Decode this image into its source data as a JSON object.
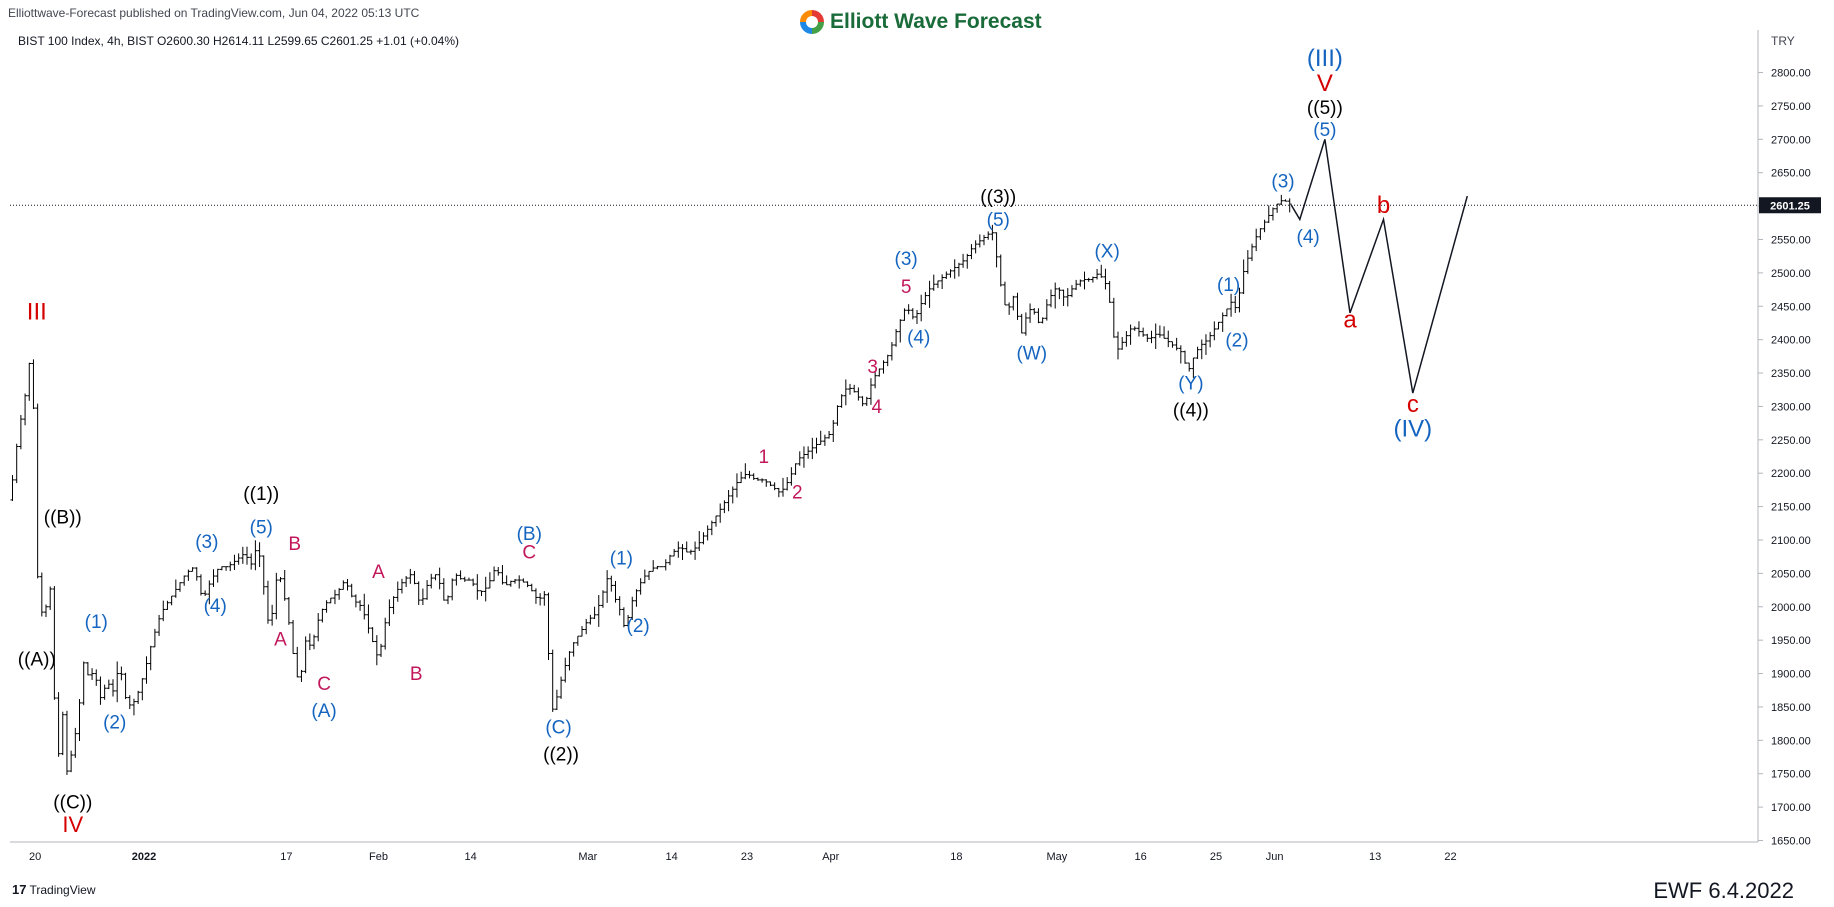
{
  "header": {
    "publisher": "Elliottwave-Forecast published on TradingView.com, Jun 04, 2022 05:13 UTC",
    "logo_text": "Elliott Wave Forecast",
    "symbol_line": "BIST 100 Index, 4h, BIST  O2600.30  H2614.11  L2599.65  C2601.25  +1.01 (+0.04%)",
    "currency": "TRY"
  },
  "footer": {
    "tradingview": "TradingView",
    "tv_mark": "17",
    "ewf_date": "EWF 6.4.2022"
  },
  "colors": {
    "blue": "#1565c0",
    "black": "#000000",
    "red": "#d50000",
    "magenta": "#c2185b",
    "price_tag": "#131722"
  },
  "chart_data": {
    "type": "line",
    "title": "",
    "xlabel": "",
    "ylabel": "",
    "ylim": [
      1630,
      2850
    ],
    "y_ticks": [
      1650,
      1700,
      1750,
      1800,
      1850,
      1900,
      1950,
      2000,
      2050,
      2100,
      2150,
      2200,
      2250,
      2300,
      2350,
      2400,
      2450,
      2500,
      2550,
      2600,
      2650,
      2700,
      2750,
      2800
    ],
    "last_price": 2601.25,
    "last_price_label": "2601.25",
    "x_ticks": [
      {
        "label": "20",
        "t": 3
      },
      {
        "label": "2022",
        "t": 16
      },
      {
        "label": "17",
        "t": 33
      },
      {
        "label": "Feb",
        "t": 44
      },
      {
        "label": "14",
        "t": 55
      },
      {
        "label": "Mar",
        "t": 69
      },
      {
        "label": "14",
        "t": 79
      },
      {
        "label": "23",
        "t": 88
      },
      {
        "label": "Apr",
        "t": 98
      },
      {
        "label": "18",
        "t": 113
      },
      {
        "label": "May",
        "t": 125
      },
      {
        "label": "16",
        "t": 135
      },
      {
        "label": "25",
        "t": 144
      },
      {
        "label": "Jun",
        "t": 151
      },
      {
        "label": "13",
        "t": 163
      },
      {
        "label": "22",
        "t": 172
      }
    ],
    "price_path": [
      [
        0,
        2160
      ],
      [
        1,
        2260
      ],
      [
        2,
        2330
      ],
      [
        2.7,
        2410
      ],
      [
        3.1,
        1960
      ],
      [
        3.5,
        2130
      ],
      [
        4,
        1900
      ],
      [
        4.6,
        2100
      ],
      [
        5.2,
        1880
      ],
      [
        5.8,
        1780
      ],
      [
        6.4,
        1850
      ],
      [
        6.9,
        1730
      ],
      [
        7.4,
        1790
      ],
      [
        8,
        1820
      ],
      [
        8.5,
        1880
      ],
      [
        9,
        1940
      ],
      [
        9.5,
        1870
      ],
      [
        10,
        1920
      ],
      [
        10.5,
        1870
      ],
      [
        11,
        1860
      ],
      [
        11.5,
        1890
      ],
      [
        12.5,
        1870
      ],
      [
        13,
        1920
      ],
      [
        14,
        1850
      ],
      [
        15,
        1860
      ],
      [
        16,
        1900
      ],
      [
        17,
        1950
      ],
      [
        18,
        1990
      ],
      [
        19,
        2010
      ],
      [
        20,
        2030
      ],
      [
        21,
        2050
      ],
      [
        22,
        2060
      ],
      [
        23,
        2010
      ],
      [
        24,
        2040
      ],
      [
        25,
        2060
      ],
      [
        26,
        2060
      ],
      [
        27,
        2070
      ],
      [
        28,
        2080
      ],
      [
        29,
        2060
      ],
      [
        29.5,
        2100
      ],
      [
        30,
        2060
      ],
      [
        30.5,
        2010
      ],
      [
        31,
        1960
      ],
      [
        32,
        2060
      ],
      [
        32.5,
        2030
      ],
      [
        33,
        2000
      ],
      [
        33.5,
        1960
      ],
      [
        34,
        1910
      ],
      [
        34.6,
        1880
      ],
      [
        35.2,
        1950
      ],
      [
        36,
        1940
      ],
      [
        37,
        1990
      ],
      [
        38,
        2010
      ],
      [
        39,
        2020
      ],
      [
        40,
        2040
      ],
      [
        41,
        2010
      ],
      [
        42,
        2000
      ],
      [
        43,
        1960
      ],
      [
        44,
        1920
      ],
      [
        45,
        1990
      ],
      [
        46,
        2020
      ],
      [
        47,
        2040
      ],
      [
        48,
        2050
      ],
      [
        49,
        2000
      ],
      [
        50,
        2040
      ],
      [
        51,
        2050
      ],
      [
        52,
        2000
      ],
      [
        53,
        2050
      ],
      [
        54,
        2040
      ],
      [
        55,
        2040
      ],
      [
        56,
        2020
      ],
      [
        57,
        2030
      ],
      [
        58,
        2060
      ],
      [
        59,
        2030
      ],
      [
        60,
        2040
      ],
      [
        61,
        2040
      ],
      [
        62,
        2030
      ],
      [
        63,
        2010
      ],
      [
        64,
        2020
      ],
      [
        64.6,
        1840
      ],
      [
        65.2,
        1860
      ],
      [
        66,
        1900
      ],
      [
        67,
        1940
      ],
      [
        68,
        1960
      ],
      [
        69,
        1980
      ],
      [
        70,
        1990
      ],
      [
        71,
        2030
      ],
      [
        71.5,
        2050
      ],
      [
        72,
        2020
      ],
      [
        73,
        1990
      ],
      [
        73.5,
        1960
      ],
      [
        74,
        2000
      ],
      [
        75,
        2030
      ],
      [
        76,
        2050
      ],
      [
        77,
        2060
      ],
      [
        78,
        2060
      ],
      [
        79,
        2080
      ],
      [
        80,
        2090
      ],
      [
        81,
        2080
      ],
      [
        82,
        2090
      ],
      [
        83,
        2110
      ],
      [
        84,
        2130
      ],
      [
        85,
        2150
      ],
      [
        86,
        2170
      ],
      [
        87,
        2190
      ],
      [
        88,
        2200
      ],
      [
        89,
        2190
      ],
      [
        90,
        2190
      ],
      [
        91,
        2180
      ],
      [
        92,
        2170
      ],
      [
        93,
        2190
      ],
      [
        94,
        2220
      ],
      [
        95,
        2230
      ],
      [
        96,
        2240
      ],
      [
        97,
        2250
      ],
      [
        98,
        2260
      ],
      [
        99,
        2310
      ],
      [
        100,
        2330
      ],
      [
        101,
        2320
      ],
      [
        102,
        2300
      ],
      [
        103,
        2340
      ],
      [
        104,
        2360
      ],
      [
        105,
        2380
      ],
      [
        106,
        2420
      ],
      [
        107,
        2450
      ],
      [
        108,
        2430
      ],
      [
        109,
        2460
      ],
      [
        110,
        2480
      ],
      [
        111,
        2490
      ],
      [
        112,
        2500
      ],
      [
        113,
        2510
      ],
      [
        114,
        2520
      ],
      [
        115,
        2540
      ],
      [
        116,
        2550
      ],
      [
        117,
        2560
      ],
      [
        117.5,
        2560
      ],
      [
        118,
        2500
      ],
      [
        119,
        2440
      ],
      [
        120,
        2470
      ],
      [
        120.6,
        2400
      ],
      [
        121.2,
        2430
      ],
      [
        122,
        2450
      ],
      [
        123,
        2420
      ],
      [
        124,
        2460
      ],
      [
        125,
        2480
      ],
      [
        126,
        2460
      ],
      [
        127,
        2480
      ],
      [
        128,
        2490
      ],
      [
        129,
        2490
      ],
      [
        130,
        2500
      ],
      [
        131,
        2480
      ],
      [
        131.5,
        2440
      ],
      [
        132,
        2380
      ],
      [
        133,
        2400
      ],
      [
        134,
        2420
      ],
      [
        135,
        2410
      ],
      [
        136,
        2400
      ],
      [
        137,
        2410
      ],
      [
        138,
        2400
      ],
      [
        139,
        2390
      ],
      [
        140,
        2380
      ],
      [
        140.6,
        2350
      ],
      [
        141.2,
        2370
      ],
      [
        142,
        2390
      ],
      [
        143,
        2400
      ],
      [
        144,
        2420
      ],
      [
        145,
        2440
      ],
      [
        146,
        2460
      ],
      [
        146.5,
        2440
      ],
      [
        147,
        2490
      ],
      [
        148,
        2530
      ],
      [
        149,
        2560
      ],
      [
        150,
        2580
      ],
      [
        151,
        2600
      ],
      [
        152,
        2610
      ],
      [
        153,
        2601.25
      ]
    ],
    "projection_path": [
      [
        153,
        2601.25
      ],
      [
        154,
        2580
      ],
      [
        157,
        2700
      ],
      [
        160,
        2440
      ],
      [
        164,
        2580
      ],
      [
        167.5,
        2320
      ],
      [
        174,
        2615
      ]
    ],
    "labels": [
      {
        "text": "III",
        "t": 3.2,
        "y": 2430,
        "color": "red",
        "size": 24
      },
      {
        "text": "((B))",
        "t": 6.3,
        "y": 2125,
        "color": "black",
        "size": 19
      },
      {
        "text": "((A))",
        "t": 3.2,
        "y": 1912,
        "color": "black",
        "size": 19
      },
      {
        "text": "((C))",
        "t": 7.5,
        "y": 1698,
        "color": "black",
        "size": 19
      },
      {
        "text": "IV",
        "t": 7.5,
        "y": 1663,
        "color": "red",
        "size": 22
      },
      {
        "text": "(1)",
        "t": 10.3,
        "y": 1968,
        "color": "blue",
        "size": 19
      },
      {
        "text": "(2)",
        "t": 12.5,
        "y": 1818,
        "color": "blue",
        "size": 19
      },
      {
        "text": "(3)",
        "t": 23.5,
        "y": 2088,
        "color": "blue",
        "size": 19
      },
      {
        "text": "(4)",
        "t": 24.5,
        "y": 1992,
        "color": "blue",
        "size": 19
      },
      {
        "text": "((1))",
        "t": 30,
        "y": 2160,
        "color": "black",
        "size": 19
      },
      {
        "text": "(5)",
        "t": 30,
        "y": 2110,
        "color": "blue",
        "size": 19
      },
      {
        "text": "B",
        "t": 34,
        "y": 2085,
        "color": "magenta",
        "size": 19
      },
      {
        "text": "A",
        "t": 32.3,
        "y": 1942,
        "color": "magenta",
        "size": 19
      },
      {
        "text": "C",
        "t": 37.5,
        "y": 1875,
        "color": "magenta",
        "size": 19
      },
      {
        "text": "(A)",
        "t": 37.5,
        "y": 1835,
        "color": "blue",
        "size": 19
      },
      {
        "text": "A",
        "t": 44,
        "y": 2043,
        "color": "magenta",
        "size": 19
      },
      {
        "text": "B",
        "t": 48.5,
        "y": 1890,
        "color": "magenta",
        "size": 19
      },
      {
        "text": "(B)",
        "t": 62,
        "y": 2100,
        "color": "blue",
        "size": 19
      },
      {
        "text": "C",
        "t": 62,
        "y": 2072,
        "color": "magenta",
        "size": 19
      },
      {
        "text": "(C)",
        "t": 65.5,
        "y": 1810,
        "color": "blue",
        "size": 19
      },
      {
        "text": "((2))",
        "t": 65.8,
        "y": 1770,
        "color": "black",
        "size": 19
      },
      {
        "text": "(1)",
        "t": 73,
        "y": 2063,
        "color": "blue",
        "size": 19
      },
      {
        "text": "(2)",
        "t": 75,
        "y": 1962,
        "color": "blue",
        "size": 19
      },
      {
        "text": "1",
        "t": 90,
        "y": 2215,
        "color": "magenta",
        "size": 19
      },
      {
        "text": "2",
        "t": 94,
        "y": 2162,
        "color": "magenta",
        "size": 19
      },
      {
        "text": "3",
        "t": 103,
        "y": 2350,
        "color": "magenta",
        "size": 19
      },
      {
        "text": "4",
        "t": 103.5,
        "y": 2290,
        "color": "magenta",
        "size": 19
      },
      {
        "text": "(3)",
        "t": 107,
        "y": 2512,
        "color": "blue",
        "size": 19
      },
      {
        "text": "5",
        "t": 107,
        "y": 2470,
        "color": "magenta",
        "size": 19
      },
      {
        "text": "(4)",
        "t": 108.5,
        "y": 2394,
        "color": "blue",
        "size": 19
      },
      {
        "text": "((3))",
        "t": 118,
        "y": 2605,
        "color": "black",
        "size": 19
      },
      {
        "text": "(5)",
        "t": 118,
        "y": 2570,
        "color": "blue",
        "size": 19
      },
      {
        "text": "(W)",
        "t": 122,
        "y": 2370,
        "color": "blue",
        "size": 19
      },
      {
        "text": "(X)",
        "t": 131,
        "y": 2523,
        "color": "blue",
        "size": 19
      },
      {
        "text": "(Y)",
        "t": 141,
        "y": 2325,
        "color": "blue",
        "size": 19
      },
      {
        "text": "((4))",
        "t": 141,
        "y": 2285,
        "color": "black",
        "size": 19
      },
      {
        "text": "(1)",
        "t": 145.5,
        "y": 2473,
        "color": "blue",
        "size": 19
      },
      {
        "text": "(2)",
        "t": 146.5,
        "y": 2390,
        "color": "blue",
        "size": 19
      },
      {
        "text": "(3)",
        "t": 152,
        "y": 2628,
        "color": "blue",
        "size": 19
      },
      {
        "text": "(4)",
        "t": 155,
        "y": 2545,
        "color": "blue",
        "size": 19
      },
      {
        "text": "(III)",
        "t": 157,
        "y": 2810,
        "color": "blue",
        "size": 24
      },
      {
        "text": "V",
        "t": 157,
        "y": 2772,
        "color": "red",
        "size": 24
      },
      {
        "text": "((5))",
        "t": 157,
        "y": 2738,
        "color": "black",
        "size": 19
      },
      {
        "text": "(5)",
        "t": 157,
        "y": 2705,
        "color": "blue",
        "size": 19
      },
      {
        "text": "b",
        "t": 164,
        "y": 2590,
        "color": "red",
        "size": 24
      },
      {
        "text": "a",
        "t": 160,
        "y": 2418,
        "color": "red",
        "size": 24
      },
      {
        "text": "c",
        "t": 167.5,
        "y": 2292,
        "color": "red",
        "size": 24
      },
      {
        "text": "(IV)",
        "t": 167.5,
        "y": 2255,
        "color": "blue",
        "size": 24
      }
    ]
  }
}
